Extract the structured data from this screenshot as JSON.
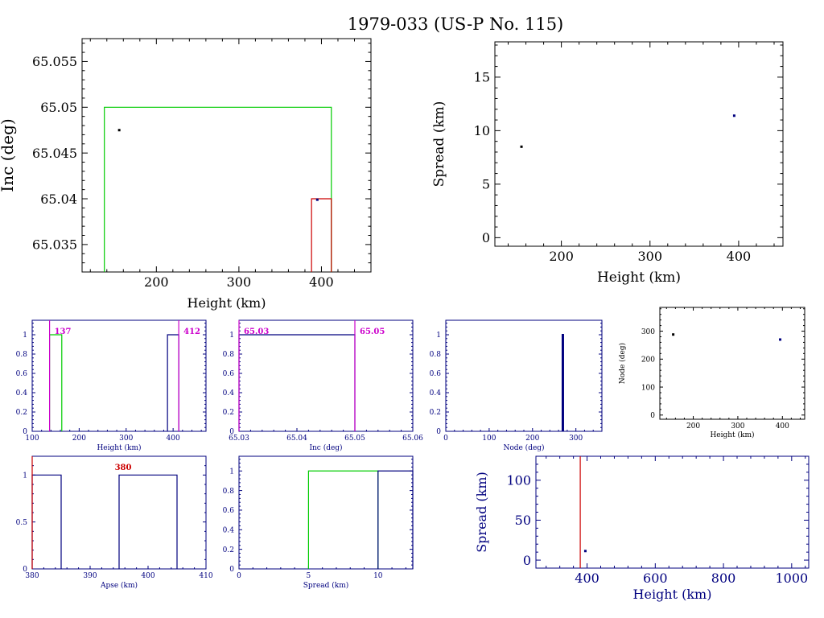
{
  "title": "1979-033 (US-P No. 115)",
  "colors": {
    "axis_black": "#000000",
    "axis_blue": "#00007f",
    "green": "#00cc00",
    "red": "#cc0000",
    "magenta": "#cc00cc",
    "blue": "#00007f"
  },
  "chart_data": [
    {
      "id": "inc-vs-height",
      "type": "scatter",
      "xlabel": "Height (km)",
      "ylabel": "Inc (deg)",
      "xlim": [
        110,
        460
      ],
      "ylim": [
        65.032,
        65.0575
      ],
      "xticks": [
        {
          "v": 200,
          "t": "200"
        },
        {
          "v": 300,
          "t": "300"
        },
        {
          "v": 400,
          "t": "400"
        }
      ],
      "yticks": [
        {
          "v": 65.035,
          "t": "65.035"
        },
        {
          "v": 65.04,
          "t": "65.04"
        },
        {
          "v": 65.045,
          "t": "65.045"
        },
        {
          "v": 65.05,
          "t": "65.05"
        },
        {
          "v": 65.055,
          "t": "65.055"
        }
      ],
      "points": [
        {
          "x": 155,
          "y": 65.0475,
          "color": "#000000"
        },
        {
          "x": 395,
          "y": 65.0399,
          "color": "#00007f"
        }
      ],
      "boxes": [
        {
          "x0": 137,
          "x1": 412,
          "y0": 65.03,
          "y1": 65.05,
          "color": "#00cc00"
        },
        {
          "x0": 388,
          "x1": 412,
          "y0": 65.03,
          "y1": 65.04,
          "color": "#cc0000"
        }
      ]
    },
    {
      "id": "spread-vs-height",
      "type": "scatter",
      "xlabel": "Height (km)",
      "ylabel": "Spread (km)",
      "xlim": [
        125,
        450
      ],
      "ylim": [
        -0.8,
        18.3
      ],
      "xticks": [
        {
          "v": 200,
          "t": "200"
        },
        {
          "v": 300,
          "t": "300"
        },
        {
          "v": 400,
          "t": "400"
        }
      ],
      "yticks": [
        {
          "v": 0,
          "t": "0"
        },
        {
          "v": 5,
          "t": "5"
        },
        {
          "v": 10,
          "t": "10"
        },
        {
          "v": 15,
          "t": "15"
        }
      ],
      "points": [
        {
          "x": 155,
          "y": 8.5,
          "color": "#000000"
        },
        {
          "x": 395,
          "y": 11.4,
          "color": "#00007f"
        }
      ]
    },
    {
      "id": "height-histogram",
      "type": "bar",
      "xlabel": "Height (km)",
      "ylabel": "",
      "xlim": [
        100,
        470
      ],
      "ylim": [
        0,
        1.15
      ],
      "xticks": [
        {
          "v": 100,
          "t": "100"
        },
        {
          "v": 200,
          "t": "200"
        },
        {
          "v": 300,
          "t": "300"
        },
        {
          "v": 400,
          "t": "400"
        }
      ],
      "yticks": [
        {
          "v": 0,
          "t": "0"
        },
        {
          "v": 0.2,
          "t": "0.2"
        },
        {
          "v": 0.4,
          "t": "0.4"
        },
        {
          "v": 0.6,
          "t": "0.6"
        },
        {
          "v": 0.8,
          "t": "0.8"
        },
        {
          "v": 1,
          "t": "1"
        }
      ],
      "bars": [
        {
          "x0": 137,
          "x1": 163,
          "value": 1,
          "color": "#00cc00"
        },
        {
          "x0": 388,
          "x1": 412,
          "value": 1,
          "color": "#00007f"
        }
      ],
      "markers": [
        {
          "x": 137,
          "label": "137",
          "color": "#cc00cc"
        },
        {
          "x": 412,
          "label": "412",
          "color": "#cc00cc"
        }
      ]
    },
    {
      "id": "inc-histogram",
      "type": "bar",
      "xlabel": "Inc (deg)",
      "ylabel": "",
      "xlim": [
        65.03,
        65.06
      ],
      "ylim": [
        0,
        1.15
      ],
      "xticks": [
        {
          "v": 65.03,
          "t": "65.03"
        },
        {
          "v": 65.04,
          "t": "65.04"
        },
        {
          "v": 65.05,
          "t": "65.05"
        },
        {
          "v": 65.06,
          "t": "65.06"
        }
      ],
      "yticks": [
        {
          "v": 0,
          "t": "0"
        },
        {
          "v": 0.2,
          "t": "0.2"
        },
        {
          "v": 0.4,
          "t": "0.4"
        },
        {
          "v": 0.6,
          "t": "0.6"
        },
        {
          "v": 0.8,
          "t": "0.8"
        },
        {
          "v": 1,
          "t": "1"
        }
      ],
      "bars": [
        {
          "x0": 65.03,
          "x1": 65.05,
          "value": 1,
          "color": "#00007f"
        }
      ],
      "markers": [
        {
          "x": 65.03,
          "label": "65.03",
          "color": "#cc00cc"
        },
        {
          "x": 65.05,
          "label": "65.05",
          "color": "#cc00cc"
        }
      ]
    },
    {
      "id": "node-histogram",
      "type": "bar",
      "xlabel": "Node (deg)",
      "ylabel": "",
      "xlim": [
        0,
        360
      ],
      "ylim": [
        0,
        1.15
      ],
      "xticks": [
        {
          "v": 0,
          "t": "0"
        },
        {
          "v": 100,
          "t": "100"
        },
        {
          "v": 200,
          "t": "200"
        },
        {
          "v": 300,
          "t": "300"
        }
      ],
      "yticks": [
        {
          "v": 0,
          "t": "0"
        },
        {
          "v": 0.2,
          "t": "0.2"
        },
        {
          "v": 0.4,
          "t": "0.4"
        },
        {
          "v": 0.6,
          "t": "0.6"
        },
        {
          "v": 0.8,
          "t": "0.8"
        },
        {
          "v": 1,
          "t": "1"
        }
      ],
      "bars": [
        {
          "x0": 269,
          "x1": 270.5,
          "value": 1,
          "color": "#00007f"
        }
      ]
    },
    {
      "id": "node-vs-height",
      "type": "scatter",
      "xlabel": "Height (km)",
      "ylabel": "Node (deg)",
      "xlim": [
        125,
        450
      ],
      "ylim": [
        -15,
        385
      ],
      "xticks": [
        {
          "v": 200,
          "t": "200"
        },
        {
          "v": 300,
          "t": "300"
        },
        {
          "v": 400,
          "t": "400"
        }
      ],
      "yticks": [
        {
          "v": 0,
          "t": "0"
        },
        {
          "v": 100,
          "t": "100"
        },
        {
          "v": 200,
          "t": "200"
        },
        {
          "v": 300,
          "t": "300"
        }
      ],
      "points": [
        {
          "x": 155,
          "y": 288,
          "color": "#000000"
        },
        {
          "x": 395,
          "y": 270,
          "color": "#00007f"
        }
      ]
    },
    {
      "id": "apse-histogram",
      "type": "bar",
      "xlabel": "Apse (km)",
      "ylabel": "",
      "xlim": [
        380,
        410
      ],
      "ylim": [
        0,
        1.2
      ],
      "xticks": [
        {
          "v": 380,
          "t": "380"
        },
        {
          "v": 390,
          "t": "390"
        },
        {
          "v": 400,
          "t": "400"
        },
        {
          "v": 410,
          "t": "410"
        }
      ],
      "yticks": [
        {
          "v": 0,
          "t": "0"
        },
        {
          "v": 0.5,
          "t": "0.5"
        },
        {
          "v": 1,
          "t": "1"
        }
      ],
      "bars": [
        {
          "x0": 380,
          "x1": 385,
          "value": 1,
          "color": "#00007f"
        },
        {
          "x0": 395,
          "x1": 405,
          "value": 1,
          "color": "#00007f"
        }
      ],
      "markers": [
        {
          "x": 380,
          "label": "380",
          "color": "#cc0000"
        }
      ]
    },
    {
      "id": "spread-histogram",
      "type": "bar",
      "xlabel": "Spread (km)",
      "ylabel": "",
      "xlim": [
        0,
        12.5
      ],
      "ylim": [
        0,
        1.15
      ],
      "xticks": [
        {
          "v": 0,
          "t": "0"
        },
        {
          "v": 5,
          "t": "5"
        },
        {
          "v": 10,
          "t": "10"
        }
      ],
      "yticks": [
        {
          "v": 0,
          "t": "0"
        },
        {
          "v": 0.2,
          "t": "0.2"
        },
        {
          "v": 0.4,
          "t": "0.4"
        },
        {
          "v": 0.6,
          "t": "0.6"
        },
        {
          "v": 0.8,
          "t": "0.8"
        },
        {
          "v": 1,
          "t": "1"
        }
      ],
      "bars": [
        {
          "x0": 5,
          "x1": 10,
          "value": 1,
          "color": "#00cc00"
        },
        {
          "x0": 10,
          "x1": 12.5,
          "value": 1,
          "color": "#00007f"
        }
      ]
    },
    {
      "id": "spread-vs-height-wide",
      "type": "scatter",
      "xlabel": "Height (km)",
      "ylabel": "Spread (km)",
      "xlim": [
        250,
        1050
      ],
      "ylim": [
        -10,
        130
      ],
      "xticks": [
        {
          "v": 400,
          "t": "400"
        },
        {
          "v": 600,
          "t": "600"
        },
        {
          "v": 800,
          "t": "800"
        },
        {
          "v": 1000,
          "t": "1000"
        }
      ],
      "yticks": [
        {
          "v": 0,
          "t": "0"
        },
        {
          "v": 50,
          "t": "50"
        },
        {
          "v": 100,
          "t": "100"
        }
      ],
      "points": [
        {
          "x": 395,
          "y": 11.4,
          "color": "#00007f"
        }
      ],
      "vlines": [
        {
          "x": 380,
          "color": "#cc0000"
        }
      ]
    }
  ]
}
